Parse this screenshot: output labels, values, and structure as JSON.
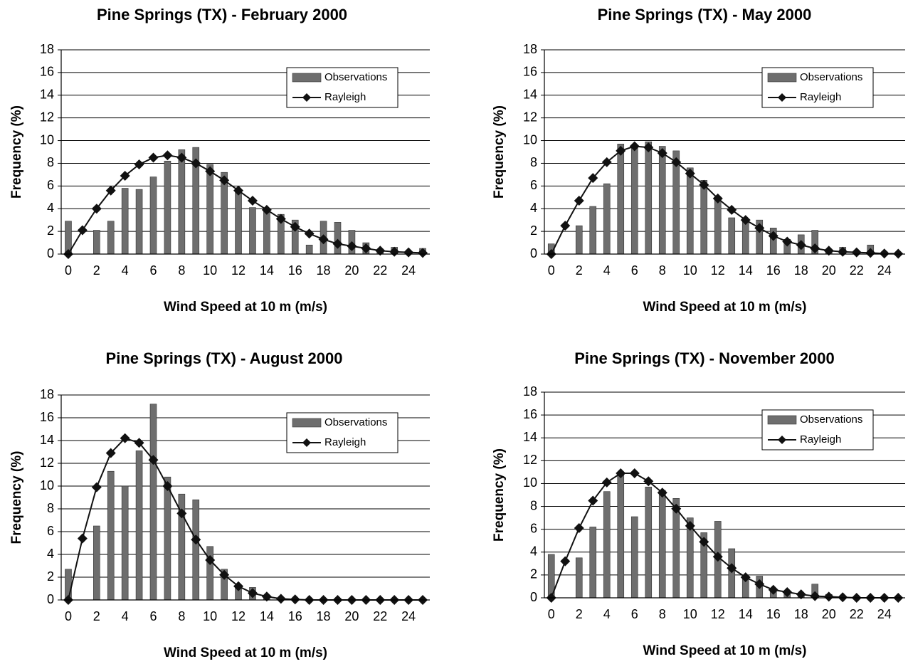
{
  "chart_data": [
    {
      "type": "combo",
      "title": "Pine Springs (TX) - February 2000",
      "x_label": "Wind Speed at 10 m (m/s)",
      "y_label": "Frequency (%)",
      "categories": [
        0,
        null,
        2,
        null,
        4,
        null,
        6,
        null,
        8,
        null,
        10,
        null,
        12,
        null,
        14,
        null,
        16,
        null,
        18,
        null,
        20,
        null,
        22,
        null,
        24,
        null
      ],
      "ylim": [
        0,
        18
      ],
      "yticks": [
        0,
        2,
        4,
        6,
        8,
        10,
        12,
        14,
        16,
        18
      ],
      "grid": true,
      "legend": "upper right",
      "series": [
        {
          "name": "Observations",
          "type": "bar",
          "color": "#6e6e6e",
          "values": [
            2.9,
            0,
            2.1,
            2.9,
            5.8,
            5.7,
            6.8,
            8.2,
            9.2,
            9.4,
            7.9,
            7.2,
            5.7,
            4.1,
            4.0,
            3.5,
            3.0,
            0.8,
            2.9,
            2.8,
            2.1,
            1.0,
            0.3,
            0.6,
            0.2,
            0.5
          ]
        },
        {
          "name": "Rayleigh",
          "type": "line",
          "color": "#111111",
          "values": [
            0,
            2.1,
            4.0,
            5.6,
            6.9,
            7.9,
            8.5,
            8.7,
            8.5,
            8.0,
            7.3,
            6.5,
            5.6,
            4.7,
            3.9,
            3.1,
            2.4,
            1.8,
            1.3,
            0.9,
            0.7,
            0.5,
            0.3,
            0.2,
            0.15,
            0.1
          ]
        }
      ]
    },
    {
      "type": "combo",
      "title": "Pine Springs (TX) - May 2000",
      "x_label": "Wind Speed at 10 m (m/s)",
      "y_label": "Frequency (%)",
      "categories": [
        0,
        null,
        2,
        null,
        4,
        null,
        6,
        null,
        8,
        null,
        10,
        null,
        12,
        null,
        14,
        null,
        16,
        null,
        18,
        null,
        20,
        null,
        22,
        null,
        24,
        null
      ],
      "ylim": [
        0,
        18
      ],
      "yticks": [
        0,
        2,
        4,
        6,
        8,
        10,
        12,
        14,
        16,
        18
      ],
      "grid": true,
      "legend": "upper right",
      "series": [
        {
          "name": "Observations",
          "type": "bar",
          "color": "#6e6e6e",
          "values": [
            0.9,
            0,
            2.5,
            4.2,
            6.2,
            9.7,
            9.6,
            9.9,
            9.5,
            9.1,
            7.6,
            6.5,
            4.9,
            3.2,
            2.9,
            3.0,
            2.3,
            1.3,
            1.7,
            2.1,
            0.3,
            0.6,
            0.2,
            0.8,
            0.2,
            0.1
          ]
        },
        {
          "name": "Rayleigh",
          "type": "line",
          "color": "#111111",
          "values": [
            0,
            2.5,
            4.7,
            6.7,
            8.1,
            9.1,
            9.5,
            9.4,
            8.9,
            8.1,
            7.1,
            6.1,
            4.9,
            3.9,
            3.0,
            2.3,
            1.6,
            1.1,
            0.8,
            0.5,
            0.3,
            0.2,
            0.15,
            0.1,
            0.05,
            0.03
          ]
        }
      ]
    },
    {
      "type": "combo",
      "title": "Pine Springs (TX) - August 2000",
      "x_label": "Wind Speed at 10 m (m/s)",
      "y_label": "Frequency (%)",
      "categories": [
        0,
        null,
        2,
        null,
        4,
        null,
        6,
        null,
        8,
        null,
        10,
        null,
        12,
        null,
        14,
        null,
        16,
        null,
        18,
        null,
        20,
        null,
        22,
        null,
        24,
        null
      ],
      "ylim": [
        0,
        18
      ],
      "yticks": [
        0,
        2,
        4,
        6,
        8,
        10,
        12,
        14,
        16,
        18
      ],
      "grid": true,
      "legend": "upper right",
      "series": [
        {
          "name": "Observations",
          "type": "bar",
          "color": "#6e6e6e",
          "values": [
            2.7,
            0,
            6.5,
            11.3,
            10.0,
            13.1,
            17.2,
            10.8,
            9.3,
            8.8,
            4.7,
            2.7,
            1.1,
            1.1,
            0.2,
            0,
            0,
            0,
            0,
            0,
            0,
            0,
            0,
            0,
            0,
            0
          ]
        },
        {
          "name": "Rayleigh",
          "type": "line",
          "color": "#111111",
          "values": [
            0,
            5.4,
            9.9,
            12.9,
            14.2,
            13.8,
            12.3,
            10.0,
            7.6,
            5.3,
            3.5,
            2.2,
            1.2,
            0.6,
            0.3,
            0.1,
            0.05,
            0,
            0,
            0,
            0,
            0,
            0,
            0,
            0,
            0
          ]
        }
      ]
    },
    {
      "type": "combo",
      "title": "Pine Springs (TX) - November 2000",
      "x_label": "Wind Speed at 10 m (m/s)",
      "y_label": "Frequency (%)",
      "categories": [
        0,
        null,
        2,
        null,
        4,
        null,
        6,
        null,
        8,
        null,
        10,
        null,
        12,
        null,
        14,
        null,
        16,
        null,
        18,
        null,
        20,
        null,
        22,
        null,
        24,
        null
      ],
      "ylim": [
        0,
        18
      ],
      "yticks": [
        0,
        2,
        4,
        6,
        8,
        10,
        12,
        14,
        16,
        18
      ],
      "grid": true,
      "legend": "upper right",
      "series": [
        {
          "name": "Observations",
          "type": "bar",
          "color": "#6e6e6e",
          "values": [
            3.8,
            0,
            3.5,
            6.2,
            9.3,
            11.0,
            7.1,
            9.7,
            9.4,
            8.7,
            7.0,
            5.7,
            6.7,
            4.3,
            1.9,
            1.9,
            0.7,
            0.3,
            0.2,
            1.2,
            0.3,
            0.1,
            0,
            0,
            0,
            0
          ]
        },
        {
          "name": "Rayleigh",
          "type": "line",
          "color": "#111111",
          "values": [
            0,
            3.2,
            6.1,
            8.5,
            10.1,
            10.9,
            10.9,
            10.2,
            9.2,
            7.8,
            6.3,
            4.9,
            3.6,
            2.6,
            1.8,
            1.2,
            0.7,
            0.5,
            0.3,
            0.15,
            0.1,
            0.05,
            0,
            0,
            0,
            0
          ]
        }
      ]
    }
  ]
}
